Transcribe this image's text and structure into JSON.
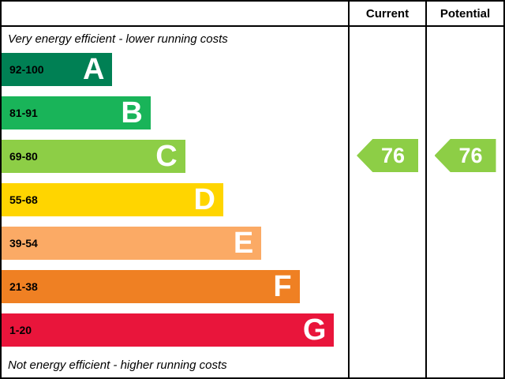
{
  "header": {
    "current": "Current",
    "potential": "Potential"
  },
  "chart_data": {
    "type": "bar",
    "subtype": "epc-energy-efficiency-rating",
    "top_caption": "Very energy efficient - lower running costs",
    "bottom_caption": "Not energy efficient - higher running costs",
    "bands": [
      {
        "letter": "A",
        "range": "92-100",
        "color": "#008054",
        "width_pct": 32
      },
      {
        "letter": "B",
        "range": "81-91",
        "color": "#19b459",
        "width_pct": 43
      },
      {
        "letter": "C",
        "range": "69-80",
        "color": "#8dce46",
        "width_pct": 53
      },
      {
        "letter": "D",
        "range": "55-68",
        "color": "#ffd500",
        "width_pct": 64
      },
      {
        "letter": "E",
        "range": "39-54",
        "color": "#fbaa65",
        "width_pct": 75
      },
      {
        "letter": "F",
        "range": "21-38",
        "color": "#ef8023",
        "width_pct": 86
      },
      {
        "letter": "G",
        "range": "1-20",
        "color": "#e9153b",
        "width_pct": 96
      }
    ],
    "current": {
      "value": "76",
      "band": "C",
      "color": "#8dce46"
    },
    "potential": {
      "value": "76",
      "band": "C",
      "color": "#8dce46"
    }
  }
}
